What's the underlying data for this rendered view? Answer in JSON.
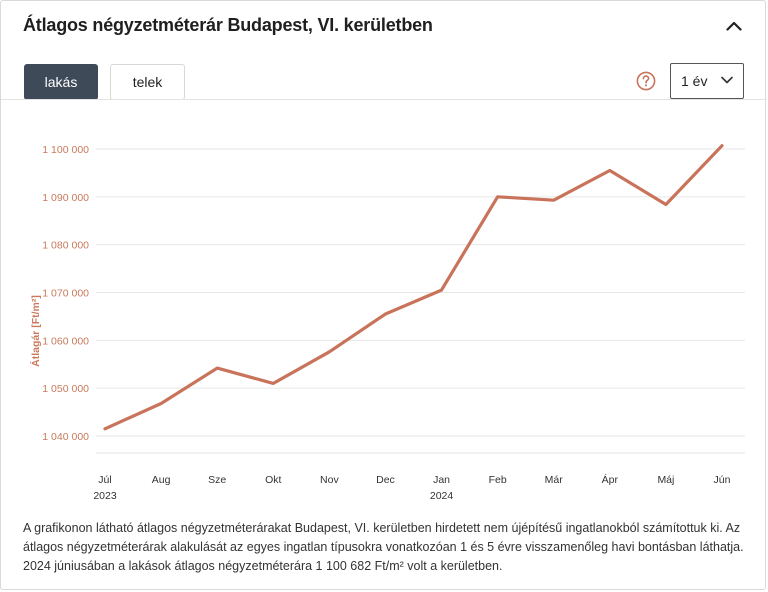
{
  "header": {
    "title": "Átlagos négyzetméterár Budapest, VI. kerületben",
    "collapse_icon": "chevron-up-icon"
  },
  "tabs": [
    {
      "label": "lakás",
      "active": true
    },
    {
      "label": "telek",
      "active": false
    }
  ],
  "controls": {
    "help_icon": "question-circle-icon",
    "period_select": {
      "value": "1 év",
      "icon": "chevron-down-icon"
    }
  },
  "colors": {
    "line": "#c8735a",
    "accent": "#c8735a",
    "active_tab": "#3f4a59"
  },
  "chart_data": {
    "type": "line",
    "ylabel": "Átlagár [Ft/m²]",
    "ylim": [
      1040000,
      1100000
    ],
    "yticks": [
      {
        "value": 1040000,
        "label": "1 040 000"
      },
      {
        "value": 1050000,
        "label": "1 050 000"
      },
      {
        "value": 1060000,
        "label": "1 060 000"
      },
      {
        "value": 1070000,
        "label": "1 070 000"
      },
      {
        "value": 1080000,
        "label": "1 080 000"
      },
      {
        "value": 1090000,
        "label": "1 090 000"
      },
      {
        "value": 1100000,
        "label": "1 100 000"
      }
    ],
    "categories": [
      "Júl",
      "Aug",
      "Sze",
      "Okt",
      "Nov",
      "Dec",
      "Jan",
      "Feb",
      "Már",
      "Ápr",
      "Máj",
      "Jún"
    ],
    "year_labels": [
      "2023",
      "",
      "",
      "",
      "",
      "",
      "2024",
      "",
      "",
      "",
      "",
      ""
    ],
    "grid": true,
    "series": [
      {
        "values": [
          1041500,
          1046800,
          1054200,
          1051000,
          1057600,
          1065500,
          1070500,
          1090000,
          1089300,
          1095500,
          1088400,
          1100682
        ]
      }
    ]
  },
  "caption": {
    "text": "A grafikonon látható átlagos négyzetméterárakat Budapest, VI. kerületben hirdetett nem újépítésű ingatlanokból számítottuk ki. Az átlagos négyzetméterárak alakulását az egyes ingatlan típusokra vonatkozóan 1 és 5 évre visszamenőleg havi bontásban láthatja. 2024 júniusában a lakások átlagos négyzetméterára 1 100 682 Ft/m² volt a kerületben."
  }
}
